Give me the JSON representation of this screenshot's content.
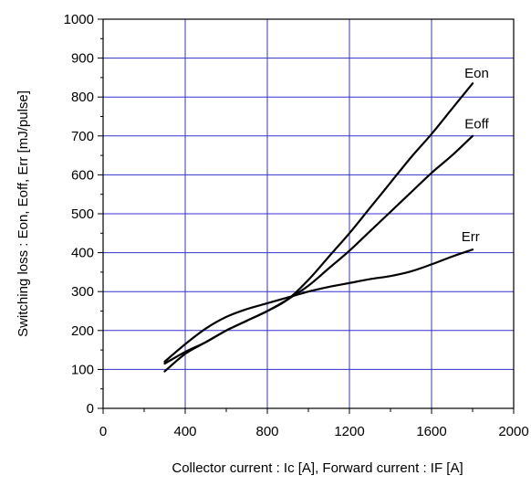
{
  "chart_data": {
    "type": "line",
    "title": "",
    "xlabel": "Collector current : Ic [A], Forward current : IF [A]",
    "ylabel": "Switching loss : Eon, Eoff, Err [mJ/pulse]",
    "xlim": [
      0,
      2000
    ],
    "ylim": [
      0,
      1000
    ],
    "x_ticks": [
      0,
      400,
      800,
      1200,
      1600,
      2000
    ],
    "y_ticks": [
      0,
      100,
      200,
      300,
      400,
      500,
      600,
      700,
      800,
      900,
      1000
    ],
    "x_tick_labels": [
      "0",
      "400",
      "800",
      "1200",
      "1600",
      "2000"
    ],
    "y_tick_labels": [
      "0",
      "100",
      "200",
      "300",
      "400",
      "500",
      "600",
      "700",
      "800",
      "900",
      "1000"
    ],
    "grid": true,
    "grid_color": "#3333cc",
    "line_color": "#000000",
    "series": [
      {
        "name": "Eon",
        "x": [
          300,
          400,
          500,
          600,
          700,
          800,
          900,
          1000,
          1100,
          1200,
          1300,
          1400,
          1500,
          1600,
          1700,
          1800
        ],
        "y": [
          95,
          140,
          170,
          200,
          225,
          250,
          280,
          330,
          390,
          450,
          515,
          580,
          645,
          705,
          770,
          835
        ]
      },
      {
        "name": "Eoff",
        "x": [
          300,
          400,
          500,
          600,
          700,
          800,
          900,
          1000,
          1100,
          1200,
          1300,
          1400,
          1500,
          1600,
          1700,
          1800
        ],
        "y": [
          115,
          145,
          170,
          200,
          225,
          250,
          280,
          315,
          360,
          405,
          455,
          505,
          555,
          605,
          650,
          700
        ]
      },
      {
        "name": "Err",
        "x": [
          300,
          400,
          500,
          600,
          700,
          800,
          900,
          1000,
          1100,
          1200,
          1300,
          1400,
          1500,
          1600,
          1700,
          1800
        ],
        "y": [
          120,
          165,
          205,
          235,
          255,
          270,
          285,
          300,
          312,
          322,
          332,
          340,
          352,
          370,
          390,
          408
        ]
      }
    ],
    "series_labels": [
      {
        "text": "Eon",
        "x": 1820,
        "y": 850
      },
      {
        "text": "Eoff",
        "x": 1820,
        "y": 720
      },
      {
        "text": "Err",
        "x": 1790,
        "y": 430
      }
    ]
  }
}
